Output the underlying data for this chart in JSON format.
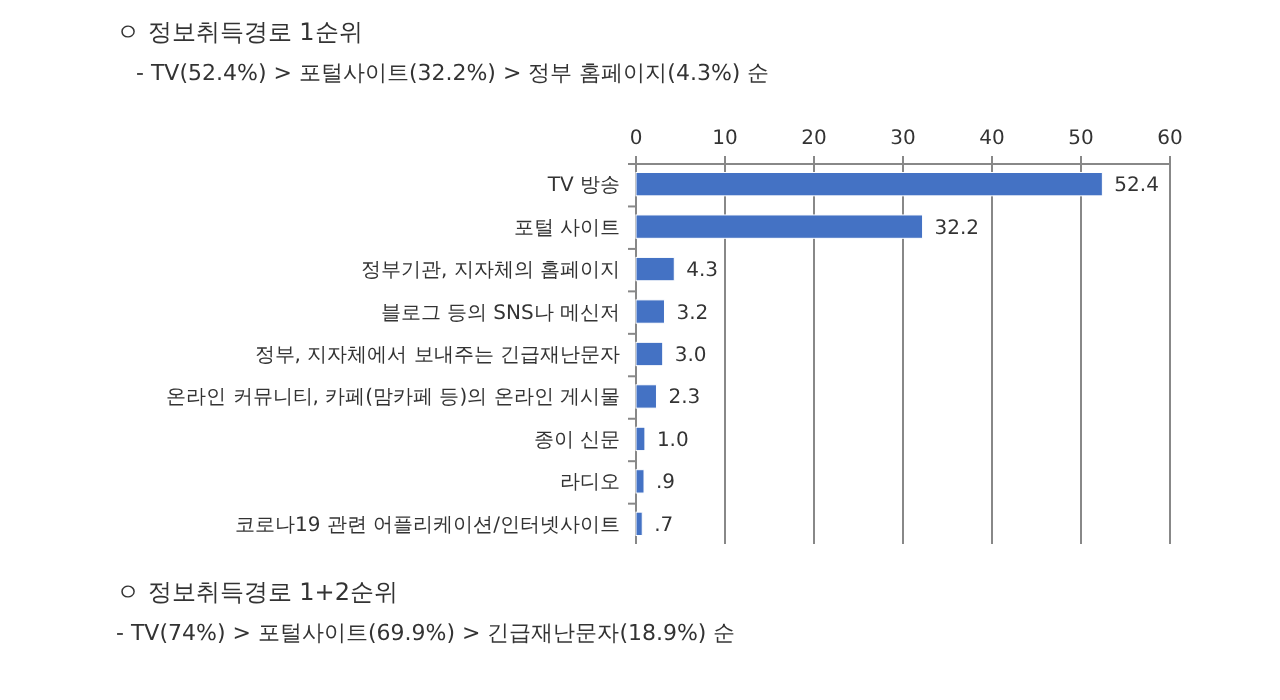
{
  "chart_data": {
    "type": "bar",
    "orientation": "horizontal",
    "title": "ㅇ 정보취득경로 1순위",
    "subtitle": "- TV(52.4%) > 포털사이트(32.2%) > 정부 홈페이지(4.3%) 순",
    "categories": [
      "TV 방송",
      "포털 사이트",
      "정부기관, 지자체의 홈페이지",
      "블로그 등의 SNS나 메신저",
      "정부, 지자체에서 보내주는 긴급재난문자",
      "온라인 커뮤니티, 카페(맘카페 등)의 온라인 게시물",
      "종이 신문",
      "라디오",
      "코로나19 관련 어플리케이션/인터넷사이트"
    ],
    "values": [
      52.4,
      32.2,
      4.3,
      3.2,
      3.0,
      2.3,
      1.0,
      0.9,
      0.7
    ],
    "value_labels": [
      "52.4",
      "32.2",
      "4.3",
      "3.2",
      "3.0",
      "2.3",
      "1.0",
      ".9",
      ".7"
    ],
    "color": "#4472c4",
    "xlim": [
      0,
      60
    ],
    "xticks": [
      0,
      10,
      20,
      30,
      40,
      50,
      60
    ],
    "grid": "x",
    "annotations": [
      "ㅇ 정보취득경로 1+2순위",
      "- TV(74%) > 포털사이트(69.9%) > 긴급재난문자(18.9%) 순"
    ]
  }
}
